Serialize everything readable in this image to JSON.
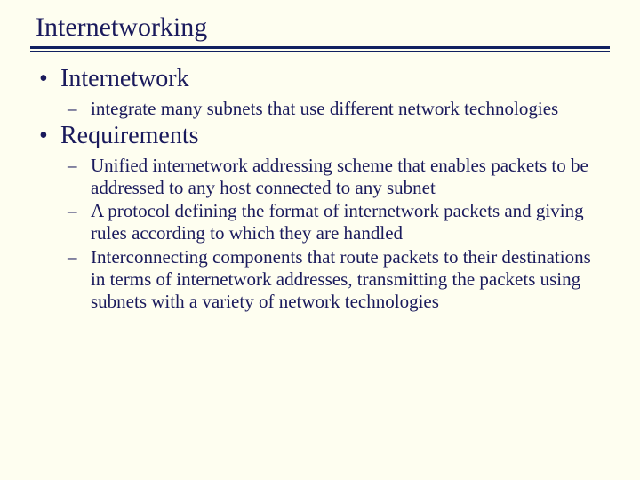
{
  "slide": {
    "title": "Internetworking",
    "background_color": "#fefef0",
    "text_color": "#1a1a5c",
    "underline_color": "#102060",
    "title_fontsize": 30,
    "l1_fontsize": 28,
    "l2_fontsize": 21,
    "items": [
      {
        "label": "Internetwork",
        "sub": [
          "integrate many subnets that use different network technologies"
        ]
      },
      {
        "label": "Requirements",
        "sub": [
          "Unified internetwork addressing scheme that enables packets to be addressed to any host connected to any subnet",
          "A protocol defining the format of internetwork packets and giving rules according to which they are handled",
          "Interconnecting components that route packets to their destinations in terms of internetwork addresses, transmitting the packets using subnets with a variety of network technologies"
        ]
      }
    ]
  }
}
